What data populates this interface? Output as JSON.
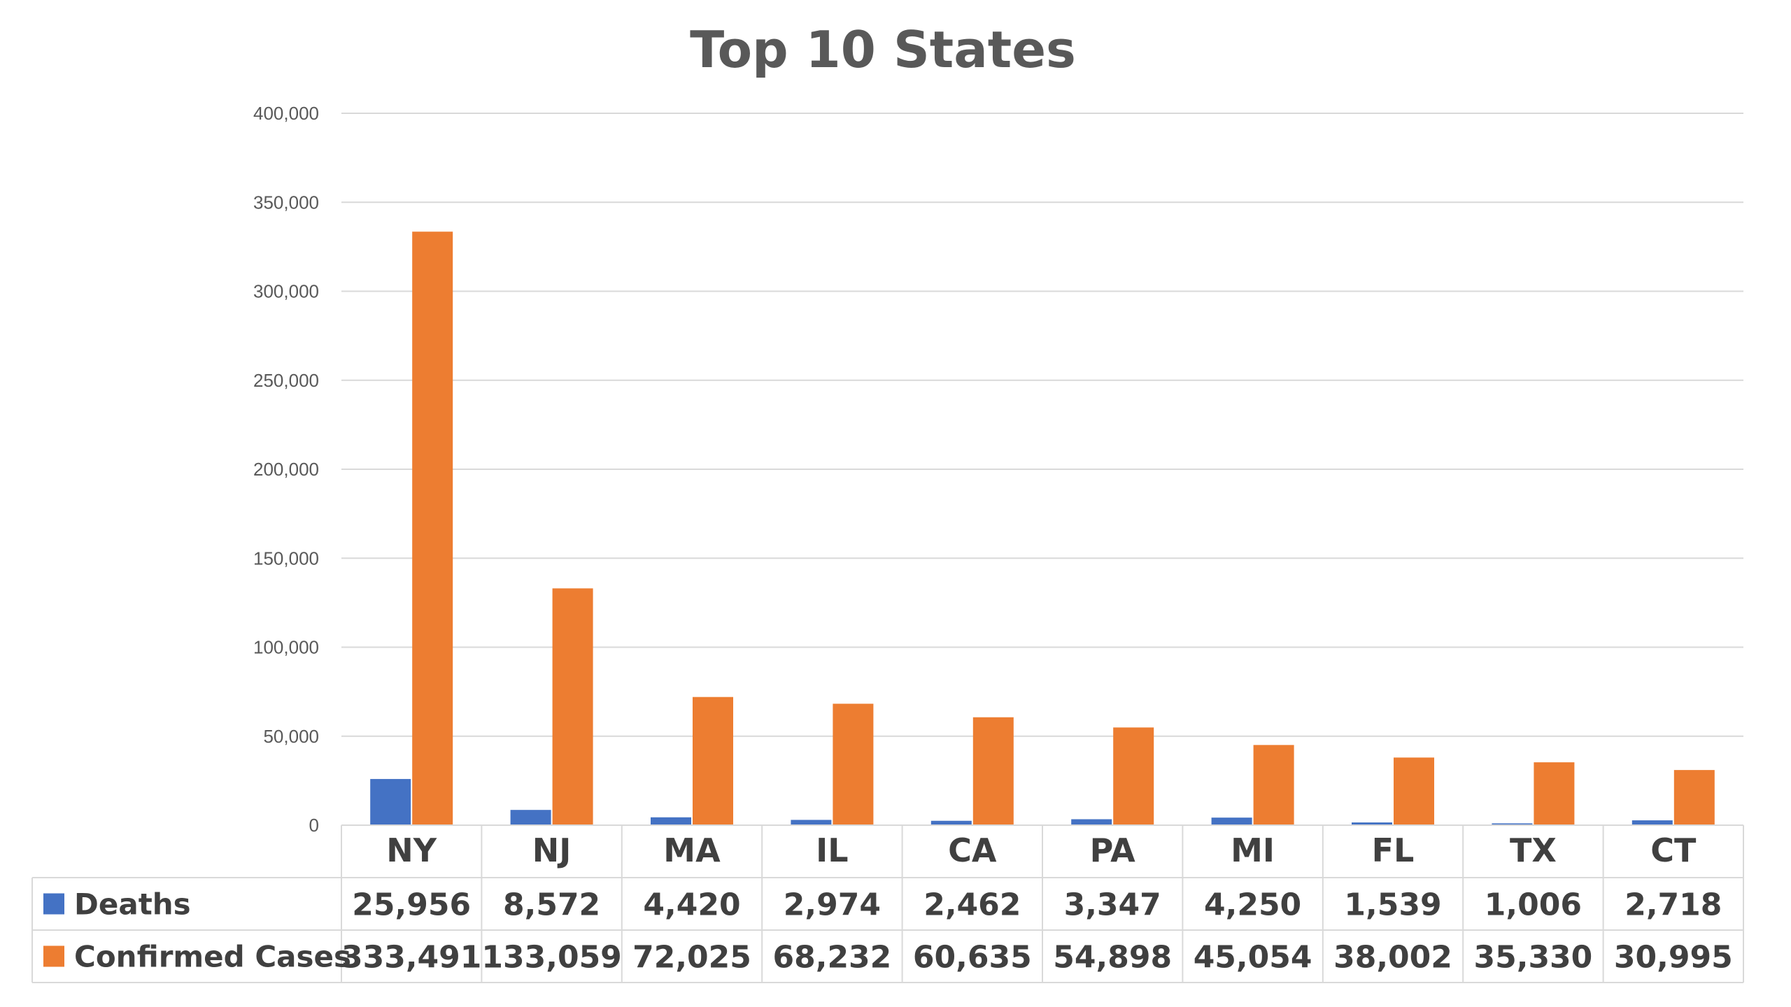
{
  "chart_data": {
    "type": "bar",
    "title": "Top 10 States",
    "categories": [
      "NY",
      "NJ",
      "MA",
      "IL",
      "CA",
      "PA",
      "MI",
      "FL",
      "TX",
      "CT"
    ],
    "series": [
      {
        "name": "Deaths",
        "color": "#4472C4",
        "values": [
          25956,
          8572,
          4420,
          2974,
          2462,
          3347,
          4250,
          1539,
          1006,
          2718
        ],
        "labels": [
          "25,956",
          "8,572",
          "4,420",
          "2,974",
          "2,462",
          "3,347",
          "4,250",
          "1,539",
          "1,006",
          "2,718"
        ]
      },
      {
        "name": "Confirmed Cases",
        "color": "#ED7D31",
        "values": [
          333491,
          133059,
          72025,
          68232,
          60635,
          54898,
          45054,
          38002,
          35330,
          30995
        ],
        "labels": [
          "333,491",
          "133,059",
          "72,025",
          "68,232",
          "60,635",
          "54,898",
          "45,054",
          "38,002",
          "35,330",
          "30,995"
        ]
      }
    ],
    "ylim": [
      0,
      400000
    ],
    "yticks": [
      "0",
      "50,000",
      "100,000",
      "150,000",
      "200,000",
      "250,000",
      "300,000",
      "350,000",
      "400,000"
    ],
    "grid": true,
    "legend": "data-table"
  }
}
